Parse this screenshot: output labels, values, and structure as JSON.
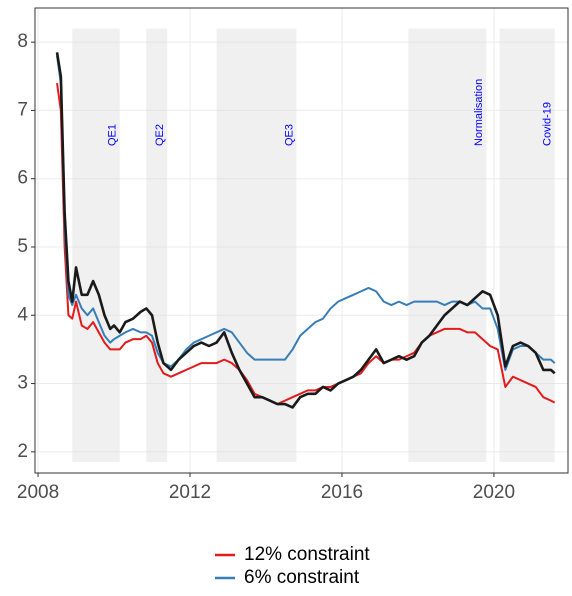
{
  "chart_data": {
    "type": "line",
    "x": [
      2008.5,
      2008.6,
      2008.7,
      2008.8,
      2008.9,
      2009.0,
      2009.15,
      2009.3,
      2009.45,
      2009.6,
      2009.75,
      2009.9,
      2010.0,
      2010.15,
      2010.3,
      2010.5,
      2010.7,
      2010.85,
      2011.0,
      2011.15,
      2011.3,
      2011.5,
      2011.7,
      2011.9,
      2012.1,
      2012.3,
      2012.5,
      2012.7,
      2012.9,
      2013.1,
      2013.3,
      2013.5,
      2013.7,
      2013.9,
      2014.1,
      2014.3,
      2014.5,
      2014.7,
      2014.9,
      2015.1,
      2015.3,
      2015.5,
      2015.7,
      2015.9,
      2016.1,
      2016.3,
      2016.5,
      2016.7,
      2016.9,
      2017.1,
      2017.3,
      2017.5,
      2017.7,
      2017.9,
      2018.1,
      2018.3,
      2018.5,
      2018.7,
      2018.9,
      2019.1,
      2019.3,
      2019.5,
      2019.7,
      2019.9,
      2020.1,
      2020.3,
      2020.5,
      2020.7,
      2020.9,
      2021.1,
      2021.3,
      2021.5,
      2021.6
    ],
    "series": [
      {
        "name": "12% constraint",
        "color": "#e41a1c",
        "values": [
          7.4,
          7.0,
          5.0,
          4.0,
          3.95,
          4.2,
          3.85,
          3.8,
          3.9,
          3.75,
          3.6,
          3.5,
          3.5,
          3.5,
          3.6,
          3.65,
          3.65,
          3.7,
          3.6,
          3.3,
          3.15,
          3.1,
          3.15,
          3.2,
          3.25,
          3.3,
          3.3,
          3.3,
          3.35,
          3.3,
          3.2,
          3.05,
          2.85,
          2.8,
          2.75,
          2.7,
          2.75,
          2.8,
          2.85,
          2.9,
          2.9,
          2.95,
          2.95,
          3.0,
          3.05,
          3.1,
          3.15,
          3.3,
          3.4,
          3.3,
          3.35,
          3.35,
          3.4,
          3.45,
          3.6,
          3.7,
          3.75,
          3.8,
          3.8,
          3.8,
          3.75,
          3.75,
          3.65,
          3.55,
          3.5,
          2.95,
          3.1,
          3.05,
          3.0,
          2.95,
          2.8,
          2.75,
          2.72
        ]
      },
      {
        "name": "6% constraint",
        "color": "#377eb8",
        "values": [
          7.8,
          7.4,
          5.3,
          4.3,
          4.15,
          4.3,
          4.1,
          4.0,
          4.1,
          3.9,
          3.7,
          3.6,
          3.65,
          3.7,
          3.75,
          3.8,
          3.75,
          3.75,
          3.7,
          3.45,
          3.3,
          3.25,
          3.35,
          3.5,
          3.6,
          3.65,
          3.7,
          3.75,
          3.8,
          3.75,
          3.6,
          3.45,
          3.35,
          3.35,
          3.35,
          3.35,
          3.35,
          3.5,
          3.7,
          3.8,
          3.9,
          3.95,
          4.1,
          4.2,
          4.25,
          4.3,
          4.35,
          4.4,
          4.35,
          4.2,
          4.15,
          4.2,
          4.15,
          4.2,
          4.2,
          4.2,
          4.2,
          4.15,
          4.2,
          4.2,
          4.15,
          4.2,
          4.1,
          4.1,
          3.8,
          3.2,
          3.5,
          3.55,
          3.55,
          3.45,
          3.35,
          3.35,
          3.3
        ]
      },
      {
        "color": "#1a1a1a",
        "values": [
          7.85,
          7.5,
          5.5,
          4.5,
          4.2,
          4.7,
          4.3,
          4.3,
          4.5,
          4.3,
          4.0,
          3.8,
          3.85,
          3.75,
          3.9,
          3.95,
          4.05,
          4.1,
          4.0,
          3.6,
          3.3,
          3.2,
          3.35,
          3.45,
          3.55,
          3.6,
          3.55,
          3.6,
          3.75,
          3.45,
          3.2,
          3.0,
          2.8,
          2.8,
          2.75,
          2.7,
          2.7,
          2.65,
          2.8,
          2.85,
          2.85,
          2.95,
          2.9,
          3.0,
          3.05,
          3.1,
          3.2,
          3.35,
          3.5,
          3.3,
          3.35,
          3.4,
          3.35,
          3.4,
          3.6,
          3.7,
          3.85,
          4.0,
          4.1,
          4.2,
          4.15,
          4.25,
          4.35,
          4.3,
          4.0,
          3.25,
          3.55,
          3.6,
          3.55,
          3.45,
          3.2,
          3.2,
          3.15
        ]
      }
    ],
    "shaded_regions": [
      {
        "label": "QE1",
        "start": 2008.9,
        "end": 2010.15
      },
      {
        "label": "QE2",
        "start": 2010.85,
        "end": 2011.4
      },
      {
        "label": "QE3",
        "start": 2012.7,
        "end": 2014.8
      },
      {
        "label": "Normalisation",
        "start": 2017.75,
        "end": 2019.8
      },
      {
        "label": "Covid-19",
        "start": 2020.15,
        "end": 2021.6
      }
    ],
    "xlim": [
      2007.92,
      2021.95
    ],
    "xticks": [
      2008,
      2012,
      2016,
      2020
    ],
    "ylim": [
      1.69,
      8.5
    ],
    "yticks": [
      2,
      3,
      4,
      5,
      6,
      7,
      8
    ],
    "grid": true,
    "legend_position": "bottom"
  }
}
